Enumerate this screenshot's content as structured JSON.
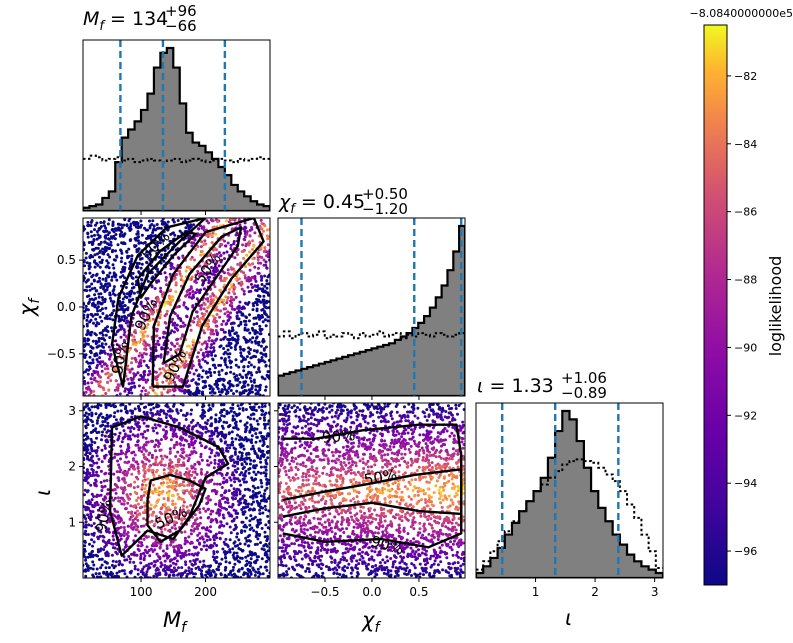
{
  "chart_data": [
    {
      "type": "histogram",
      "panel": "Mf-1d",
      "title_symbol": "M_f",
      "title_value": "134",
      "title_plus": "+96",
      "title_minus": "−66",
      "xlim": [
        10,
        300
      ],
      "quantile_lines": [
        68,
        134,
        230
      ],
      "bins_x": [
        10,
        20,
        30,
        40,
        50,
        60,
        70,
        80,
        90,
        100,
        110,
        120,
        130,
        140,
        150,
        160,
        170,
        180,
        190,
        200,
        210,
        220,
        230,
        240,
        250,
        260,
        270,
        280,
        290,
        300
      ],
      "posterior_density": [
        0.02,
        0.03,
        0.04,
        0.08,
        0.12,
        0.3,
        0.45,
        0.5,
        0.55,
        0.62,
        0.72,
        0.88,
        0.97,
        1.0,
        0.88,
        0.66,
        0.48,
        0.42,
        0.4,
        0.36,
        0.32,
        0.27,
        0.22,
        0.16,
        0.12,
        0.09,
        0.06,
        0.04,
        0.03
      ],
      "prior_density": [
        0.32,
        0.34,
        0.33,
        0.31,
        0.32,
        0.33,
        0.31,
        0.32,
        0.3,
        0.31,
        0.32,
        0.31,
        0.3,
        0.31,
        0.32,
        0.3,
        0.31,
        0.32,
        0.31,
        0.3,
        0.31,
        0.32,
        0.31,
        0.3,
        0.32,
        0.31,
        0.32,
        0.33,
        0.32
      ]
    },
    {
      "type": "histogram",
      "panel": "chi-1d",
      "title_symbol": "χ_f",
      "title_value": "0.45",
      "title_plus": "+0.50",
      "title_minus": "−1.20",
      "xlim": [
        -1.0,
        0.99
      ],
      "quantile_lines": [
        -0.75,
        0.45,
        0.95
      ],
      "posterior_density": [
        0.12,
        0.13,
        0.14,
        0.15,
        0.16,
        0.17,
        0.18,
        0.19,
        0.2,
        0.21,
        0.22,
        0.23,
        0.24,
        0.25,
        0.26,
        0.27,
        0.28,
        0.29,
        0.3,
        0.31,
        0.33,
        0.35,
        0.37,
        0.4,
        0.43,
        0.47,
        0.52,
        0.58,
        0.65,
        0.74,
        0.85,
        1.0
      ],
      "prior_density": [
        0.35,
        0.38,
        0.34,
        0.36,
        0.37,
        0.35,
        0.36,
        0.38,
        0.34,
        0.36,
        0.35,
        0.37,
        0.36,
        0.34,
        0.37,
        0.35,
        0.36,
        0.38,
        0.35,
        0.36,
        0.37,
        0.34,
        0.36,
        0.35,
        0.37,
        0.36,
        0.35,
        0.37,
        0.36,
        0.35,
        0.36,
        0.37
      ]
    },
    {
      "type": "histogram",
      "panel": "iota-1d",
      "title_symbol": "ι",
      "title_value": "1.33",
      "title_plus": "+1.06",
      "title_minus": "−0.89",
      "xlim": [
        0.0,
        3.14
      ],
      "quantile_lines": [
        0.44,
        1.33,
        2.39
      ],
      "posterior_density": [
        0.03,
        0.07,
        0.12,
        0.18,
        0.26,
        0.33,
        0.4,
        0.46,
        0.52,
        0.6,
        0.72,
        0.88,
        1.0,
        0.95,
        0.82,
        0.66,
        0.52,
        0.42,
        0.34,
        0.26,
        0.2,
        0.14,
        0.1,
        0.07,
        0.05,
        0.03
      ],
      "prior_density": [
        0.05,
        0.1,
        0.16,
        0.22,
        0.28,
        0.34,
        0.4,
        0.46,
        0.52,
        0.56,
        0.6,
        0.64,
        0.68,
        0.7,
        0.71,
        0.7,
        0.69,
        0.66,
        0.62,
        0.58,
        0.52,
        0.44,
        0.36,
        0.26,
        0.16,
        0.06
      ]
    },
    {
      "type": "scatter",
      "panel": "Mf-chi",
      "xlim": [
        10,
        300
      ],
      "ylim": [
        -0.95,
        0.95
      ],
      "contour_labels": [
        "50%",
        "50%",
        "90%",
        "90%",
        "90%"
      ],
      "contour_50_a": [
        [
          95,
          0.3
        ],
        [
          130,
          0.6
        ],
        [
          170,
          0.8
        ],
        [
          185,
          0.78
        ],
        [
          150,
          0.55
        ],
        [
          115,
          0.25
        ],
        [
          100,
          0.1
        ],
        [
          95,
          0.3
        ]
      ],
      "contour_50_b": [
        [
          135,
          -0.6
        ],
        [
          145,
          -0.1
        ],
        [
          175,
          0.35
        ],
        [
          225,
          0.75
        ],
        [
          255,
          0.85
        ],
        [
          250,
          0.65
        ],
        [
          215,
          0.3
        ],
        [
          180,
          -0.05
        ],
        [
          160,
          -0.5
        ],
        [
          135,
          -0.6
        ]
      ],
      "contour_90_a": [
        [
          55,
          -0.4
        ],
        [
          65,
          0.1
        ],
        [
          95,
          0.55
        ],
        [
          140,
          0.85
        ],
        [
          200,
          0.95
        ],
        [
          160,
          0.7
        ],
        [
          110,
          0.35
        ],
        [
          85,
          -0.1
        ],
        [
          72,
          -0.85
        ],
        [
          55,
          -0.4
        ]
      ],
      "contour_90_b": [
        [
          118,
          -0.85
        ],
        [
          120,
          -0.2
        ],
        [
          150,
          0.35
        ],
        [
          200,
          0.8
        ],
        [
          275,
          0.95
        ],
        [
          290,
          0.7
        ],
        [
          240,
          0.3
        ],
        [
          195,
          -0.2
        ],
        [
          165,
          -0.85
        ],
        [
          118,
          -0.85
        ]
      ]
    },
    {
      "type": "scatter",
      "panel": "Mf-iota",
      "xlim": [
        10,
        300
      ],
      "ylim": [
        0.0,
        3.14
      ],
      "contour_labels": [
        "90%",
        "50%"
      ],
      "contour_90": [
        [
          55,
          2.7
        ],
        [
          100,
          2.9
        ],
        [
          160,
          2.7
        ],
        [
          220,
          2.35
        ],
        [
          235,
          2.05
        ],
        [
          200,
          1.8
        ],
        [
          175,
          1.1
        ],
        [
          150,
          0.7
        ],
        [
          110,
          0.85
        ],
        [
          70,
          0.4
        ],
        [
          52,
          1.2
        ],
        [
          55,
          2.7
        ]
      ],
      "contour_50": [
        [
          110,
          1.4
        ],
        [
          115,
          1.75
        ],
        [
          145,
          1.85
        ],
        [
          175,
          1.75
        ],
        [
          200,
          1.6
        ],
        [
          190,
          1.3
        ],
        [
          160,
          0.85
        ],
        [
          130,
          0.65
        ],
        [
          110,
          0.95
        ],
        [
          110,
          1.4
        ]
      ]
    },
    {
      "type": "scatter",
      "panel": "chi-iota",
      "xlim": [
        -1.0,
        0.99
      ],
      "ylim": [
        0.0,
        3.14
      ],
      "contour_labels": [
        "90%",
        "50%",
        "90%"
      ],
      "contour_90": [
        [
          -0.95,
          2.5
        ],
        [
          -0.6,
          2.5
        ],
        [
          -0.1,
          2.65
        ],
        [
          0.5,
          2.75
        ],
        [
          0.9,
          2.75
        ],
        [
          0.95,
          2.2
        ],
        [
          0.95,
          0.8
        ],
        [
          0.6,
          0.55
        ],
        [
          0.1,
          0.7
        ],
        [
          -0.5,
          0.65
        ],
        [
          -0.95,
          0.8
        ]
      ],
      "contour_50": [
        [
          -0.95,
          1.4
        ],
        [
          -0.5,
          1.55
        ],
        [
          0.0,
          1.7
        ],
        [
          0.45,
          1.85
        ],
        [
          0.95,
          1.95
        ],
        [
          0.95,
          1.15
        ],
        [
          0.5,
          1.2
        ],
        [
          0.0,
          1.35
        ],
        [
          -0.5,
          1.25
        ],
        [
          -0.95,
          1.1
        ]
      ]
    }
  ],
  "axes": {
    "x_labels": [
      "M_f",
      "χ_f",
      "ι"
    ],
    "y_labels": [
      "χ_f",
      "ι"
    ],
    "mf_ticks": [
      "100",
      "200"
    ],
    "chi_xticks": [
      "−0.5",
      "0.0",
      "0.5"
    ],
    "chi_yticks": [
      "0.5",
      "0.0",
      "−0.5"
    ],
    "iota_ticks": [
      "1",
      "2",
      "3"
    ]
  },
  "colorbar": {
    "label": "loglikelihood",
    "offset": "−8.0840000000e5",
    "range": [
      -97,
      -80.5
    ],
    "ticks": [
      -82,
      -84,
      -86,
      -88,
      -90,
      -92,
      -94,
      -96
    ],
    "tick_labels": [
      "−82",
      "−84",
      "−86",
      "−88",
      "−90",
      "−92",
      "−94",
      "−96"
    ],
    "colormap": "plasma"
  },
  "colors": {
    "posterior_fill": "#808080",
    "quantile_line": "#1f77b4",
    "contour": "#000000"
  }
}
